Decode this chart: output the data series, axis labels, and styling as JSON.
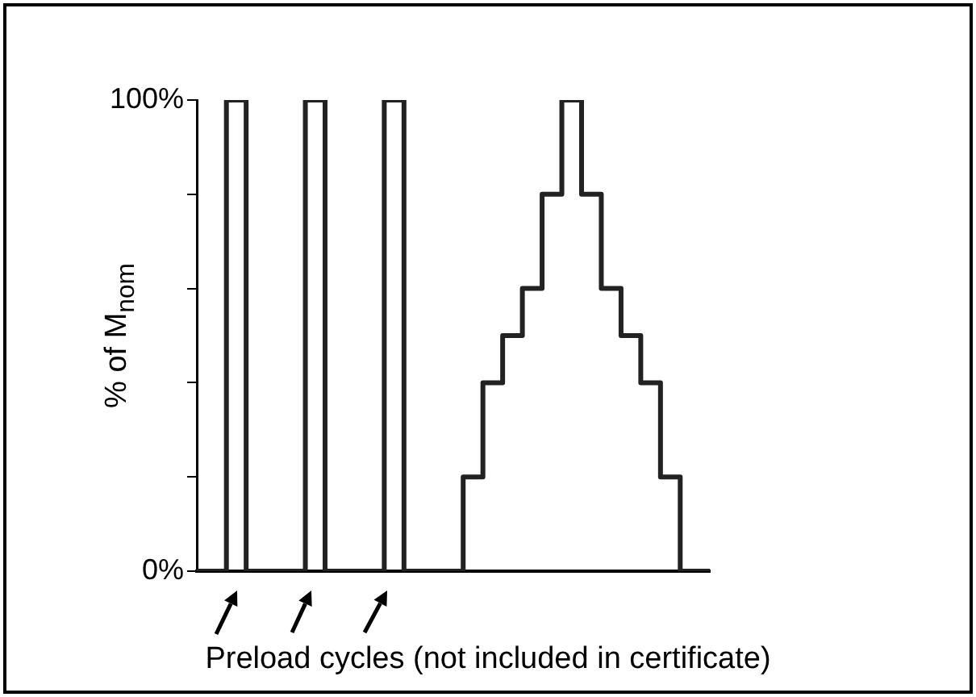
{
  "chart_data": {
    "type": "step",
    "ylabel": "% of M$_{nom}$",
    "annotations": [
      "Preload cycles (not included in certificate)"
    ],
    "categories": [
      null,
      null,
      null,
      null,
      null,
      null,
      null,
      null,
      null,
      null,
      null,
      null,
      null,
      null,
      null,
      null,
      null,
      null,
      null,
      null,
      null,
      null,
      null,
      null,
      null,
      null,
      null
    ],
    "series": [
      {
        "color": "#222222",
        "values": [
          0,
          0,
          100,
          0,
          0,
          0,
          100,
          0,
          0,
          0,
          100,
          0,
          0,
          0,
          20,
          40,
          50,
          60,
          80,
          100,
          80,
          60,
          50,
          40,
          20,
          0,
          0
        ]
      }
    ],
    "ylim": [
      0,
      100
    ],
    "yticks": [
      {
        "value": 0,
        "label": "0%"
      },
      {
        "value": 20,
        "label": null
      },
      {
        "value": 40,
        "label": null
      },
      {
        "value": 60,
        "label": null
      },
      {
        "value": 80,
        "label": null
      },
      {
        "value": 100,
        "label": "100%"
      }
    ],
    "tick_labels": "y",
    "grid": false,
    "legend": false,
    "marker": "none",
    "line_style": "solid"
  }
}
